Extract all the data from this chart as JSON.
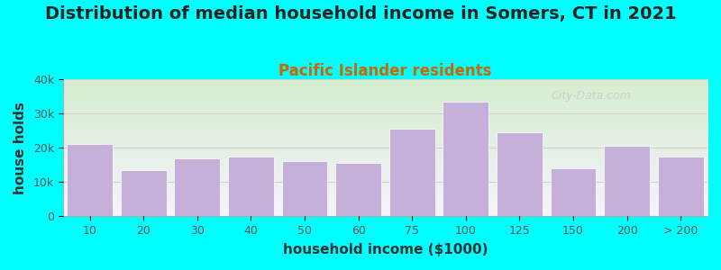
{
  "title": "Distribution of median household income in Somers, CT in 2021",
  "subtitle": "Pacific Islander residents",
  "xlabel": "household income ($1000)",
  "ylabel": "house holds",
  "background_color": "#00FFFF",
  "bar_color": "#c4b0d8",
  "categories": [
    "10",
    "20",
    "30",
    "40",
    "50",
    "60",
    "75",
    "100",
    "125",
    "150",
    "200",
    "> 200"
  ],
  "values": [
    21000,
    13500,
    17000,
    17500,
    16000,
    15500,
    25500,
    33500,
    24500,
    14000,
    20500,
    17500
  ],
  "ylim": [
    0,
    40000
  ],
  "yticks": [
    0,
    10000,
    20000,
    30000,
    40000
  ],
  "ytick_labels": [
    "0",
    "10k",
    "20k",
    "30k",
    "40k"
  ],
  "title_fontsize": 14,
  "subtitle_fontsize": 12,
  "axis_label_fontsize": 11,
  "tick_fontsize": 9,
  "watermark_text": "City-Data.com",
  "gradient_top_color": "#d6edcf",
  "gradient_bottom_color": "#f5f4fc"
}
